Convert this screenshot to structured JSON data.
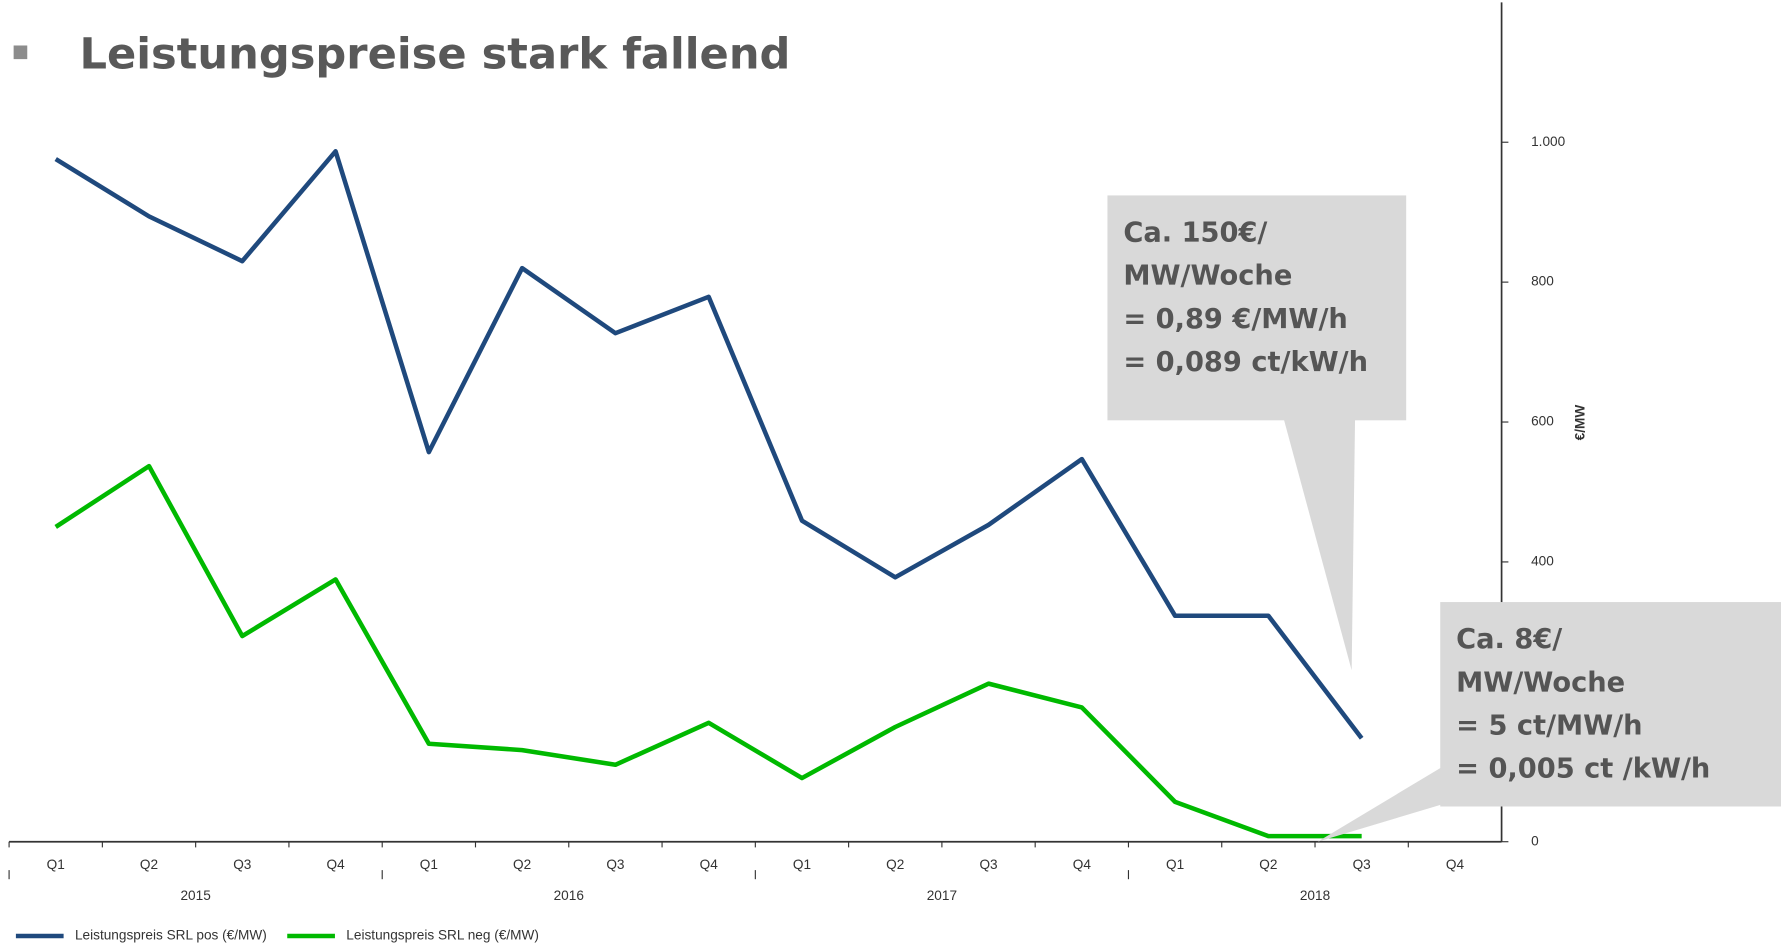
{
  "title": "Leistungspreise stark fallend",
  "chart_data": {
    "type": "line",
    "categories": [
      "Q1",
      "Q2",
      "Q3",
      "Q4",
      "Q1",
      "Q2",
      "Q3",
      "Q4",
      "Q1",
      "Q2",
      "Q3",
      "Q4",
      "Q1",
      "Q2",
      "Q3",
      "Q4"
    ],
    "years": [
      "2015",
      "2016",
      "2017",
      "2018"
    ],
    "series": [
      {
        "name": "Leistungspreis SRL pos (€/MW)",
        "color": "#1f497d",
        "values": [
          976,
          894,
          830,
          987,
          557,
          820,
          727,
          779,
          459,
          378,
          453,
          547,
          323,
          323,
          148,
          null
        ]
      },
      {
        "name": "Leistungspreis SRL neg (€/MW)",
        "color": "#00b900",
        "values": [
          450,
          537,
          294,
          375,
          140,
          131,
          110,
          170,
          91,
          164,
          226,
          192,
          57,
          8,
          8,
          null
        ]
      }
    ],
    "ylabel": "€/MW",
    "ylim": [
      0,
      1200
    ],
    "yticks": [
      0,
      400,
      600,
      800,
      {
        "value": 1000,
        "label": "1.000"
      }
    ],
    "legend": "bottom"
  },
  "callouts": [
    [
      "Ca. 150€/",
      "MW/Woche",
      "= 0,89 €/MW/h",
      "= 0,089 ct/kW/h"
    ],
    [
      "Ca. 8€/",
      "MW/Woche",
      "= 5 ct/MW/h",
      "= 0,005 ct /kW/h"
    ]
  ]
}
